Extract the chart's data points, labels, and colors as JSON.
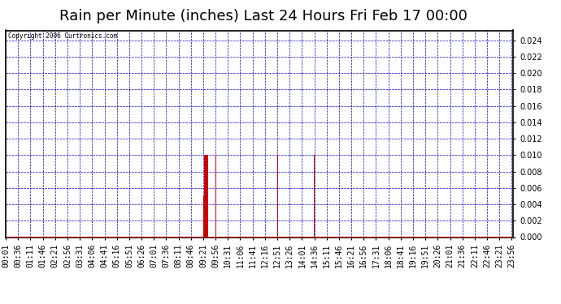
{
  "title": "Rain per Minute (inches) Last 24 Hours Fri Feb 17 00:00",
  "copyright_text": "Copyright 2006 Curtronics.com",
  "background_color": "#ffffff",
  "plot_bg_color": "#ffffff",
  "bar_color": "#cc0000",
  "grid_color": "#0000cc",
  "border_color": "#000000",
  "ylim": [
    0.0,
    0.0252
  ],
  "yticks": [
    0.0,
    0.002,
    0.004,
    0.006,
    0.008,
    0.01,
    0.012,
    0.014,
    0.016,
    0.018,
    0.02,
    0.022,
    0.024
  ],
  "title_fontsize": 13,
  "tick_fontsize": 7,
  "n_minutes": 1440,
  "x_tick_labels": [
    "00:01",
    "00:36",
    "01:11",
    "01:46",
    "02:21",
    "02:56",
    "03:31",
    "04:06",
    "04:41",
    "05:16",
    "05:51",
    "06:26",
    "07:01",
    "07:36",
    "08:11",
    "08:46",
    "09:21",
    "09:56",
    "10:31",
    "11:06",
    "11:41",
    "12:16",
    "12:51",
    "13:26",
    "14:01",
    "14:36",
    "15:11",
    "15:46",
    "16:21",
    "16:56",
    "17:31",
    "18:06",
    "18:41",
    "19:16",
    "19:51",
    "20:26",
    "21:01",
    "21:36",
    "22:11",
    "22:46",
    "23:21",
    "23:56"
  ],
  "x_tick_positions_minutes": [
    0,
    35,
    70,
    105,
    140,
    175,
    210,
    245,
    280,
    315,
    350,
    385,
    420,
    455,
    490,
    525,
    560,
    595,
    630,
    665,
    700,
    735,
    770,
    805,
    840,
    875,
    910,
    945,
    980,
    1015,
    1050,
    1085,
    1120,
    1155,
    1190,
    1225,
    1260,
    1295,
    1330,
    1365,
    1400,
    1435
  ],
  "rain_events": [
    {
      "minute": 560,
      "value": 0.005
    },
    {
      "minute": 561,
      "value": 0.005
    },
    {
      "minute": 562,
      "value": 0.01
    },
    {
      "minute": 563,
      "value": 0.01
    },
    {
      "minute": 564,
      "value": 0.01
    },
    {
      "minute": 565,
      "value": 0.01
    },
    {
      "minute": 566,
      "value": 0.01
    },
    {
      "minute": 567,
      "value": 0.01
    },
    {
      "minute": 568,
      "value": 0.01
    },
    {
      "minute": 569,
      "value": 0.01
    },
    {
      "minute": 570,
      "value": 0.01
    },
    {
      "minute": 571,
      "value": 0.01
    },
    {
      "minute": 572,
      "value": 0.01
    },
    {
      "minute": 573,
      "value": 0.01
    },
    {
      "minute": 596,
      "value": 0.01
    },
    {
      "minute": 597,
      "value": 0.01
    },
    {
      "minute": 735,
      "value": 0.01
    },
    {
      "minute": 736,
      "value": 0.01
    },
    {
      "minute": 770,
      "value": 0.01
    },
    {
      "minute": 771,
      "value": 0.01
    },
    {
      "minute": 875,
      "value": 0.01
    },
    {
      "minute": 876,
      "value": 0.01
    }
  ]
}
